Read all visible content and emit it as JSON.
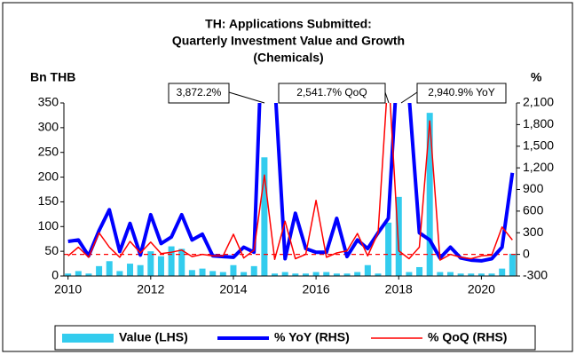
{
  "chart_data": {
    "type": "bar_line",
    "title": [
      "TH: Applications Submitted:",
      "Quarterly Investment Value and Growth",
      "(Chemicals)"
    ],
    "y_label": "Bn THB",
    "y2_label": "%",
    "x": [
      2010,
      2010.25,
      2010.5,
      2010.75,
      2011,
      2011.25,
      2011.5,
      2011.75,
      2012,
      2012.25,
      2012.5,
      2012.75,
      2013,
      2013.25,
      2013.5,
      2013.75,
      2014,
      2014.25,
      2014.5,
      2014.75,
      2015,
      2015.25,
      2015.5,
      2015.75,
      2016,
      2016.25,
      2016.5,
      2016.75,
      2017,
      2017.25,
      2017.5,
      2017.75,
      2018,
      2018.25,
      2018.5,
      2018.75,
      2019,
      2019.25,
      2019.5,
      2019.75,
      2020,
      2020.25,
      2020.5,
      2020.75
    ],
    "series": [
      {
        "name": "Value (LHS)",
        "color": "#33ccee",
        "kind": "bar",
        "axis": "y",
        "values": [
          5,
          10,
          5,
          20,
          30,
          10,
          25,
          22,
          50,
          40,
          60,
          55,
          12,
          15,
          10,
          8,
          22,
          8,
          20,
          240,
          5,
          8,
          5,
          5,
          8,
          8,
          5,
          5,
          8,
          22,
          5,
          108,
          160,
          8,
          18,
          330,
          8,
          8,
          5,
          5,
          5,
          5,
          15,
          45
        ]
      },
      {
        "name": "% YoY (RHS)",
        "color": "#0000ff",
        "kind": "line",
        "axis": "y2",
        "values": [
          180,
          200,
          -20,
          330,
          620,
          40,
          430,
          -10,
          550,
          150,
          240,
          550,
          200,
          280,
          -20,
          -30,
          -40,
          100,
          30,
          3872.2,
          2400,
          -60,
          570,
          80,
          30,
          30,
          500,
          -30,
          200,
          80,
          300,
          500,
          2940.9,
          2200,
          300,
          200,
          -50,
          100,
          -50,
          -80,
          -90,
          -60,
          100,
          1130
        ]
      },
      {
        "name": "% QoQ (RHS)",
        "color": "#ff0000",
        "kind": "line",
        "axis": "y2",
        "values": [
          -20,
          100,
          -40,
          300,
          100,
          -40,
          180,
          20,
          170,
          10,
          30,
          60,
          -30,
          0,
          -20,
          -20,
          280,
          -50,
          60,
          1100,
          -70,
          460,
          -60,
          0,
          750,
          -40,
          20,
          50,
          290,
          -20,
          300,
          2541.7,
          50,
          -60,
          100,
          1850,
          -80,
          0,
          -40,
          -60,
          -20,
          -10,
          380,
          200
        ]
      }
    ],
    "annotations": [
      "3,872.2%",
      "2,541.7% QoQ",
      "2,940.9% YoY"
    ],
    "xlim": [
      2009.9,
      2020.85
    ],
    "xticks": [
      2010,
      2012,
      2014,
      2016,
      2018,
      2020
    ],
    "ylim": [
      0,
      350
    ],
    "yticks": [
      0,
      50,
      100,
      150,
      200,
      250,
      300,
      350
    ],
    "y2lim": [
      -300,
      2100
    ],
    "y2ticks": [
      -300,
      0,
      300,
      600,
      900,
      {
        "value": 1200,
        "label": "1,200"
      },
      {
        "value": 1500,
        "label": "1,500"
      },
      {
        "value": 1800,
        "label": "1,800"
      },
      {
        "value": 2100,
        "label": "2,100"
      }
    ],
    "y2_zero_line": true,
    "legend": "bottom"
  }
}
